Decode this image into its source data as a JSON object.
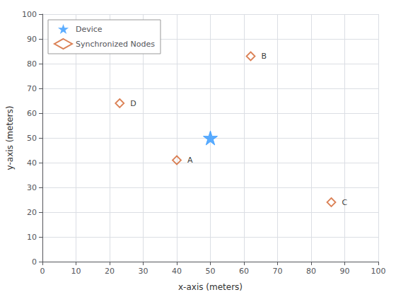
{
  "chart_data": {
    "type": "scatter",
    "xlabel": "x-axis (meters)",
    "ylabel": "y-axis (meters)",
    "xlim": [
      0,
      100
    ],
    "ylim": [
      0,
      100
    ],
    "xticks": [
      0,
      10,
      20,
      30,
      40,
      50,
      60,
      70,
      80,
      90,
      100
    ],
    "yticks": [
      0,
      10,
      20,
      30,
      40,
      50,
      60,
      70,
      80,
      90,
      100
    ],
    "grid": true,
    "legend": "upper left",
    "series": [
      {
        "name": "Device",
        "color": "#3399ff",
        "marker": "star",
        "x": [
          50
        ],
        "y": [
          50
        ]
      },
      {
        "name": "Synchronized Nodes",
        "color": "#d2622a",
        "marker": "diamond",
        "x": [
          40,
          62,
          86,
          23
        ],
        "y": [
          41,
          83,
          24,
          64
        ],
        "labels": [
          "A",
          "B",
          "C",
          "D"
        ]
      }
    ]
  }
}
